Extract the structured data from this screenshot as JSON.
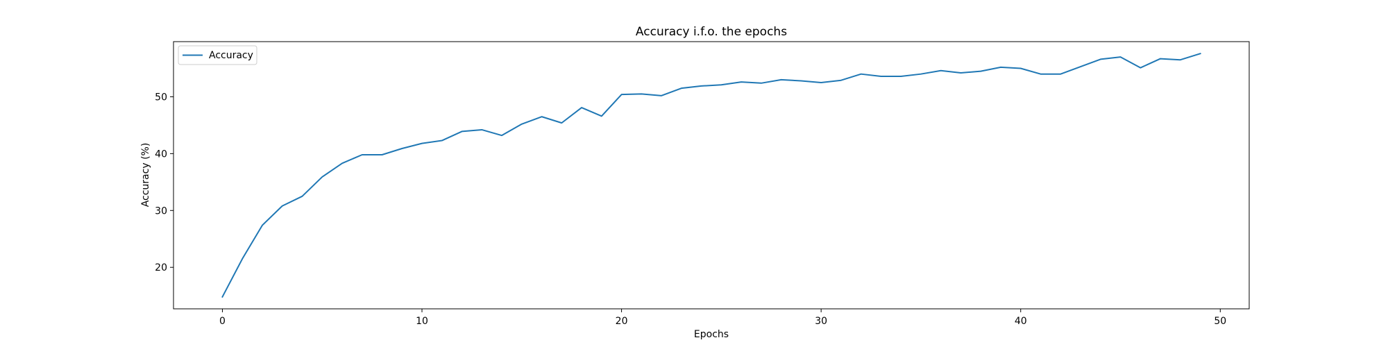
{
  "chart_data": {
    "type": "line",
    "title": "Accuracy i.f.o. the epochs",
    "xlabel": "Epochs",
    "ylabel": "Accuracy (%)",
    "xlim": [
      -2.45,
      51.45
    ],
    "ylim": [
      12.7,
      59.7
    ],
    "xticks": [
      0,
      10,
      20,
      30,
      40,
      50
    ],
    "yticks": [
      20,
      30,
      40,
      50
    ],
    "legend": {
      "position": "top-left",
      "entries": [
        "Accuracy"
      ]
    },
    "series": [
      {
        "name": "Accuracy",
        "color": "#1f77b4",
        "x": [
          0,
          1,
          2,
          3,
          4,
          5,
          6,
          7,
          8,
          9,
          10,
          11,
          12,
          13,
          14,
          15,
          16,
          17,
          18,
          19,
          20,
          21,
          22,
          23,
          24,
          25,
          26,
          27,
          28,
          29,
          30,
          31,
          32,
          33,
          34,
          35,
          36,
          37,
          38,
          39,
          40,
          41,
          42,
          43,
          44,
          45,
          46,
          47,
          48,
          49
        ],
        "values": [
          14.8,
          21.5,
          27.4,
          30.8,
          32.5,
          35.9,
          38.3,
          39.8,
          39.8,
          40.9,
          41.8,
          42.3,
          43.9,
          44.2,
          43.2,
          45.2,
          46.5,
          45.4,
          48.1,
          46.6,
          50.4,
          50.5,
          50.2,
          51.5,
          51.9,
          52.1,
          52.6,
          52.4,
          53.0,
          52.8,
          52.5,
          52.9,
          54.0,
          53.6,
          53.6,
          54.0,
          54.6,
          54.2,
          54.5,
          55.2,
          55.0,
          54.0,
          54.0,
          55.3,
          56.6,
          57.0,
          55.1,
          56.7,
          56.5,
          57.6
        ]
      }
    ]
  }
}
